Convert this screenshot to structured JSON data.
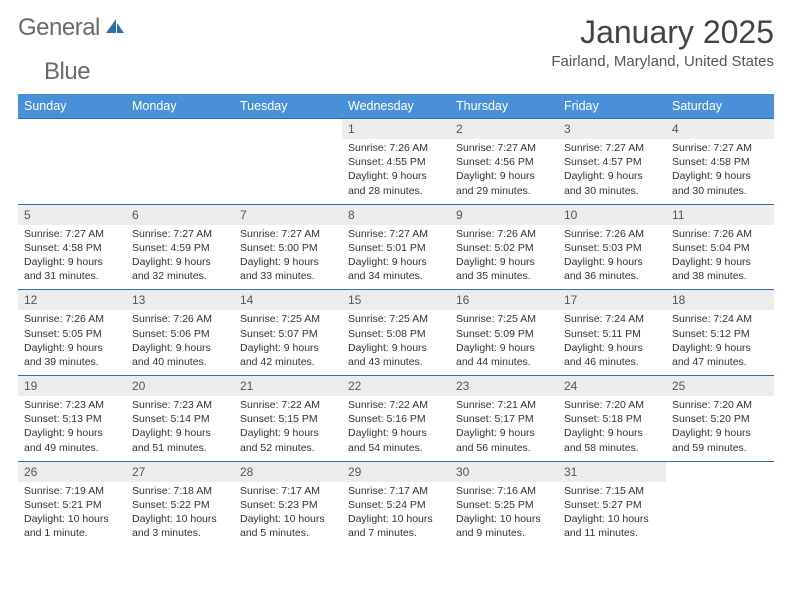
{
  "brand": {
    "word1": "General",
    "word2": "Blue",
    "word1_color": "#6a6a6a",
    "word2_color": "#2f6fb0"
  },
  "title": "January 2025",
  "location": "Fairland, Maryland, United States",
  "colors": {
    "header_bg": "#4a90d9",
    "header_text": "#ffffff",
    "daynum_bg": "#ececec",
    "rule": "#2f6fb0",
    "text": "#333333"
  },
  "weekdays": [
    "Sunday",
    "Monday",
    "Tuesday",
    "Wednesday",
    "Thursday",
    "Friday",
    "Saturday"
  ],
  "first_weekday_index": 3,
  "days": [
    {
      "n": 1,
      "sunrise": "7:26 AM",
      "sunset": "4:55 PM",
      "daylight": "9 hours and 28 minutes."
    },
    {
      "n": 2,
      "sunrise": "7:27 AM",
      "sunset": "4:56 PM",
      "daylight": "9 hours and 29 minutes."
    },
    {
      "n": 3,
      "sunrise": "7:27 AM",
      "sunset": "4:57 PM",
      "daylight": "9 hours and 30 minutes."
    },
    {
      "n": 4,
      "sunrise": "7:27 AM",
      "sunset": "4:58 PM",
      "daylight": "9 hours and 30 minutes."
    },
    {
      "n": 5,
      "sunrise": "7:27 AM",
      "sunset": "4:58 PM",
      "daylight": "9 hours and 31 minutes."
    },
    {
      "n": 6,
      "sunrise": "7:27 AM",
      "sunset": "4:59 PM",
      "daylight": "9 hours and 32 minutes."
    },
    {
      "n": 7,
      "sunrise": "7:27 AM",
      "sunset": "5:00 PM",
      "daylight": "9 hours and 33 minutes."
    },
    {
      "n": 8,
      "sunrise": "7:27 AM",
      "sunset": "5:01 PM",
      "daylight": "9 hours and 34 minutes."
    },
    {
      "n": 9,
      "sunrise": "7:26 AM",
      "sunset": "5:02 PM",
      "daylight": "9 hours and 35 minutes."
    },
    {
      "n": 10,
      "sunrise": "7:26 AM",
      "sunset": "5:03 PM",
      "daylight": "9 hours and 36 minutes."
    },
    {
      "n": 11,
      "sunrise": "7:26 AM",
      "sunset": "5:04 PM",
      "daylight": "9 hours and 38 minutes."
    },
    {
      "n": 12,
      "sunrise": "7:26 AM",
      "sunset": "5:05 PM",
      "daylight": "9 hours and 39 minutes."
    },
    {
      "n": 13,
      "sunrise": "7:26 AM",
      "sunset": "5:06 PM",
      "daylight": "9 hours and 40 minutes."
    },
    {
      "n": 14,
      "sunrise": "7:25 AM",
      "sunset": "5:07 PM",
      "daylight": "9 hours and 42 minutes."
    },
    {
      "n": 15,
      "sunrise": "7:25 AM",
      "sunset": "5:08 PM",
      "daylight": "9 hours and 43 minutes."
    },
    {
      "n": 16,
      "sunrise": "7:25 AM",
      "sunset": "5:09 PM",
      "daylight": "9 hours and 44 minutes."
    },
    {
      "n": 17,
      "sunrise": "7:24 AM",
      "sunset": "5:11 PM",
      "daylight": "9 hours and 46 minutes."
    },
    {
      "n": 18,
      "sunrise": "7:24 AM",
      "sunset": "5:12 PM",
      "daylight": "9 hours and 47 minutes."
    },
    {
      "n": 19,
      "sunrise": "7:23 AM",
      "sunset": "5:13 PM",
      "daylight": "9 hours and 49 minutes."
    },
    {
      "n": 20,
      "sunrise": "7:23 AM",
      "sunset": "5:14 PM",
      "daylight": "9 hours and 51 minutes."
    },
    {
      "n": 21,
      "sunrise": "7:22 AM",
      "sunset": "5:15 PM",
      "daylight": "9 hours and 52 minutes."
    },
    {
      "n": 22,
      "sunrise": "7:22 AM",
      "sunset": "5:16 PM",
      "daylight": "9 hours and 54 minutes."
    },
    {
      "n": 23,
      "sunrise": "7:21 AM",
      "sunset": "5:17 PM",
      "daylight": "9 hours and 56 minutes."
    },
    {
      "n": 24,
      "sunrise": "7:20 AM",
      "sunset": "5:18 PM",
      "daylight": "9 hours and 58 minutes."
    },
    {
      "n": 25,
      "sunrise": "7:20 AM",
      "sunset": "5:20 PM",
      "daylight": "9 hours and 59 minutes."
    },
    {
      "n": 26,
      "sunrise": "7:19 AM",
      "sunset": "5:21 PM",
      "daylight": "10 hours and 1 minute."
    },
    {
      "n": 27,
      "sunrise": "7:18 AM",
      "sunset": "5:22 PM",
      "daylight": "10 hours and 3 minutes."
    },
    {
      "n": 28,
      "sunrise": "7:17 AM",
      "sunset": "5:23 PM",
      "daylight": "10 hours and 5 minutes."
    },
    {
      "n": 29,
      "sunrise": "7:17 AM",
      "sunset": "5:24 PM",
      "daylight": "10 hours and 7 minutes."
    },
    {
      "n": 30,
      "sunrise": "7:16 AM",
      "sunset": "5:25 PM",
      "daylight": "10 hours and 9 minutes."
    },
    {
      "n": 31,
      "sunrise": "7:15 AM",
      "sunset": "5:27 PM",
      "daylight": "10 hours and 11 minutes."
    }
  ],
  "labels": {
    "sunrise": "Sunrise:",
    "sunset": "Sunset:",
    "daylight": "Daylight:"
  }
}
